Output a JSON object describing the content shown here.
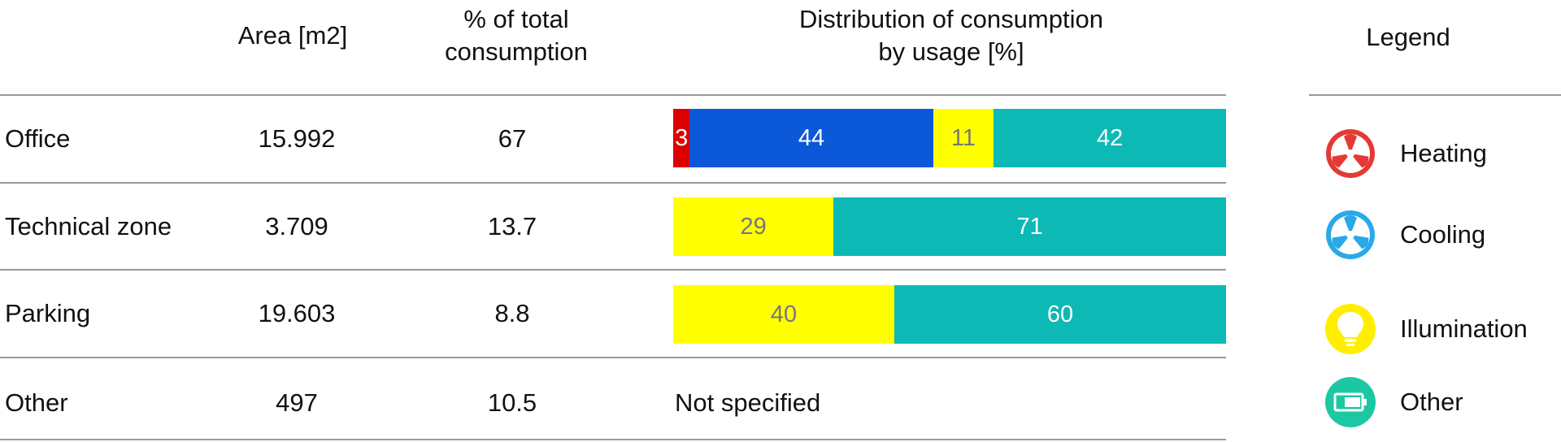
{
  "headers": {
    "area": "Area [m2]",
    "pct": "% of total\nconsumption",
    "dist": "Distribution of consumption\nby usage [%]",
    "legend": "Legend"
  },
  "colors": {
    "Heating": "#dd0000",
    "Cooling": "#0b58d8",
    "Illumination": "#ffff00",
    "Other": "#0cb9b5",
    "heating_icon": "#e53935",
    "cooling_icon": "#29a9e8",
    "illumination_icon": "#ffee00",
    "other_icon": "#1cc8a2"
  },
  "rows": [
    {
      "name": "Office",
      "area": "15.992",
      "pct": "67",
      "dist_text": ""
    },
    {
      "name": "Technical zone",
      "area": "3.709",
      "pct": "13.7",
      "dist_text": ""
    },
    {
      "name": "Parking",
      "area": "19.603",
      "pct": "8.8",
      "dist_text": ""
    },
    {
      "name": "Other",
      "area": "497",
      "pct": "10.5",
      "dist_text": "Not specified"
    }
  ],
  "legend": [
    {
      "label": "Heating",
      "icon": "heating-fan-icon"
    },
    {
      "label": "Cooling",
      "icon": "cooling-fan-icon"
    },
    {
      "label": "Illumination",
      "icon": "lightbulb-icon"
    },
    {
      "label": "Other",
      "icon": "battery-icon"
    }
  ],
  "chart_data": {
    "type": "bar",
    "stacked": true,
    "orientation": "horizontal",
    "categories": [
      "Office",
      "Technical zone",
      "Parking"
    ],
    "series": [
      {
        "name": "Heating",
        "values": [
          3,
          0,
          0
        ]
      },
      {
        "name": "Cooling",
        "values": [
          44,
          0,
          0
        ]
      },
      {
        "name": "Illumination",
        "values": [
          11,
          29,
          40
        ]
      },
      {
        "name": "Other",
        "values": [
          42,
          71,
          60
        ]
      }
    ],
    "xlim": [
      0,
      100
    ],
    "legend_position": "right"
  }
}
